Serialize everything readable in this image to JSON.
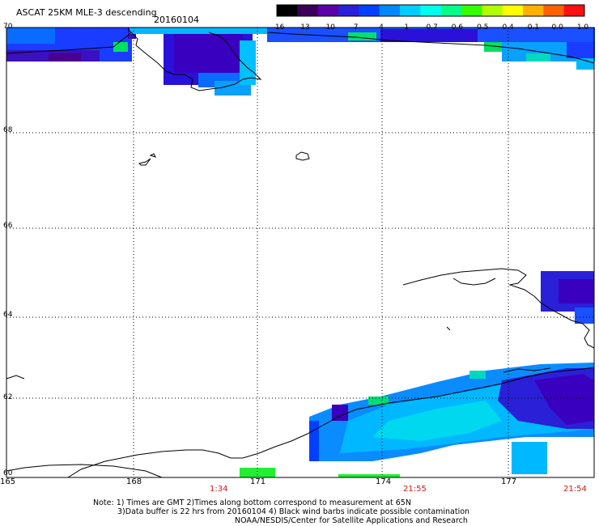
{
  "header": {
    "title": "ASCAT 25KM MLE-3 descending",
    "date": "20160104"
  },
  "colorbar": {
    "labels": [
      "-16",
      "-13",
      "-10",
      "-7",
      "-4",
      "-1",
      "-0.7",
      "-0.6",
      "-0.5",
      "-0.4",
      "-0.1",
      "0.0",
      "1.0"
    ],
    "colors": [
      "#000000",
      "#3a0058",
      "#5a00a8",
      "#2a20d8",
      "#0040ff",
      "#0088ff",
      "#00ccff",
      "#00ffee",
      "#00ff88",
      "#33ff00",
      "#b0ff00",
      "#ffff00",
      "#ffb000",
      "#ff6000",
      "#ff1010"
    ]
  },
  "axes": {
    "lat_labels": [
      "70",
      "68",
      "66",
      "64",
      "62",
      "60"
    ],
    "lon_labels": [
      "165",
      "168",
      "171",
      "174",
      "177"
    ],
    "time_labels": [
      "1:34",
      "21:55",
      "21:54"
    ]
  },
  "notes": {
    "line1": "Note: 1) Times are GMT 2)Times along bottom correspond to measurement at 65N",
    "line2": "3)Data buffer is 22 hrs from 20160104 4) Black wind barbs indicate possible contamination",
    "line3": "NOAA/NESDIS/Center for Satellite Applications and Research"
  }
}
